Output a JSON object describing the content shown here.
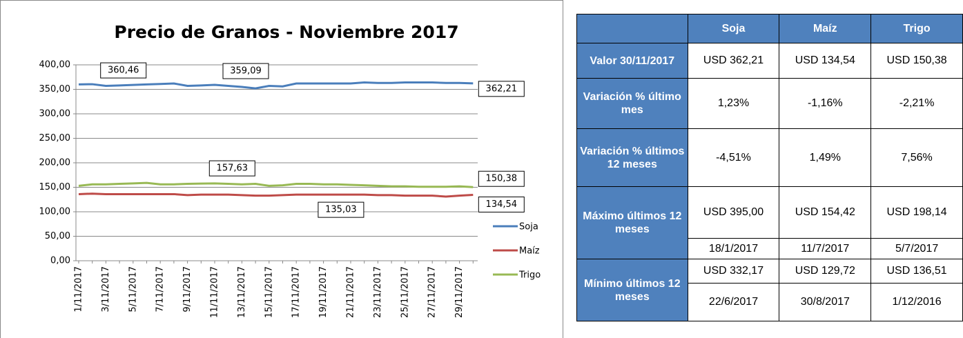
{
  "chart_data": {
    "type": "line",
    "title": "Precio de Granos - Noviembre 2017",
    "categories": [
      "1/11/2017",
      null,
      "3/11/2017",
      null,
      "5/11/2017",
      null,
      "7/11/2017",
      null,
      "9/11/2017",
      null,
      "11/11/2017",
      null,
      "13/11/2017",
      null,
      "15/11/2017",
      null,
      "17/11/2017",
      null,
      "19/11/2017",
      null,
      "21/11/2017",
      null,
      "23/11/2017",
      null,
      "25/11/2017",
      null,
      "27/11/2017",
      null,
      "29/11/2017",
      null
    ],
    "series": [
      {
        "name": "Soja",
        "color": "#4a7ebb",
        "values": [
          360,
          360.46,
          357,
          358,
          359,
          360,
          361,
          362,
          357,
          358,
          359.09,
          357,
          355,
          352,
          357,
          356,
          362,
          362,
          362,
          362,
          362,
          364,
          363,
          363,
          364,
          364,
          364,
          363,
          363,
          362.21
        ],
        "value_labels": [
          null,
          "360,46",
          null,
          null,
          null,
          null,
          null,
          null,
          null,
          null,
          "359,09",
          null,
          null,
          null,
          null,
          null,
          null,
          null,
          null,
          null,
          null,
          null,
          null,
          null,
          null,
          null,
          null,
          null,
          null,
          "362,21"
        ]
      },
      {
        "name": "Maíz",
        "color": "#be4b48",
        "values": [
          136,
          137,
          136,
          136,
          136,
          136,
          136,
          136,
          134,
          135,
          135,
          135,
          134,
          133,
          133,
          134,
          135,
          135.03,
          135,
          135,
          135,
          135,
          134,
          134,
          133,
          133,
          133,
          131,
          133,
          134.54
        ],
        "value_labels": [
          null,
          null,
          null,
          null,
          null,
          null,
          null,
          null,
          null,
          null,
          null,
          null,
          null,
          null,
          null,
          null,
          null,
          "135,03",
          null,
          null,
          null,
          null,
          null,
          null,
          null,
          null,
          null,
          null,
          null,
          "134,54"
        ]
      },
      {
        "name": "Trigo",
        "color": "#98b954",
        "values": [
          153,
          156,
          156,
          157,
          158,
          159,
          156,
          156,
          157,
          157.63,
          158,
          157,
          156,
          157,
          153,
          154,
          157,
          157,
          156,
          156,
          155,
          154,
          153,
          152,
          152,
          151,
          151,
          151,
          152,
          150.38
        ],
        "value_labels": [
          null,
          null,
          null,
          null,
          null,
          null,
          null,
          null,
          null,
          "157,63",
          null,
          null,
          null,
          null,
          null,
          null,
          null,
          null,
          null,
          null,
          null,
          null,
          null,
          null,
          null,
          null,
          null,
          null,
          null,
          "150,38"
        ]
      }
    ],
    "ylim": [
      0,
      400
    ],
    "yticks": [
      {
        "value": 0,
        "label": "0,00"
      },
      {
        "value": 50,
        "label": "50,00"
      },
      {
        "value": 100,
        "label": "100,00"
      },
      {
        "value": 150,
        "label": "150,00"
      },
      {
        "value": 200,
        "label": "200,00"
      },
      {
        "value": 250,
        "label": "250,00"
      },
      {
        "value": 300,
        "label": "300,00"
      },
      {
        "value": 350,
        "label": "350,00"
      },
      {
        "value": 400,
        "label": "400,00"
      }
    ],
    "grid": true,
    "legend": "right"
  },
  "table": {
    "header": [
      "Soja",
      "Maíz",
      "Trigo"
    ],
    "rows": [
      {
        "label": "Valor 30/11/2017",
        "values": [
          "USD 362,21",
          "USD 134,54",
          "USD 150,38"
        ]
      },
      {
        "label": "Variación % último mes",
        "values": [
          "1,23%",
          "-1,16%",
          "-2,21%"
        ]
      },
      {
        "label": "Variación % últimos 12 meses",
        "values": [
          "-4,51%",
          "1,49%",
          "7,56%"
        ]
      },
      {
        "label": "Máximo últimos 12 meses",
        "values": [
          "USD 395,00",
          "USD 154,42",
          "USD 198,14"
        ],
        "dates": [
          "18/1/2017",
          "11/7/2017",
          "5/7/2017"
        ]
      },
      {
        "label": "Mínimo últimos 12 meses",
        "values": [
          "USD 332,17",
          "USD 129,72",
          "USD 136,51"
        ],
        "dates": [
          "22/6/2017",
          "30/8/2017",
          "1/12/2016"
        ]
      }
    ]
  }
}
